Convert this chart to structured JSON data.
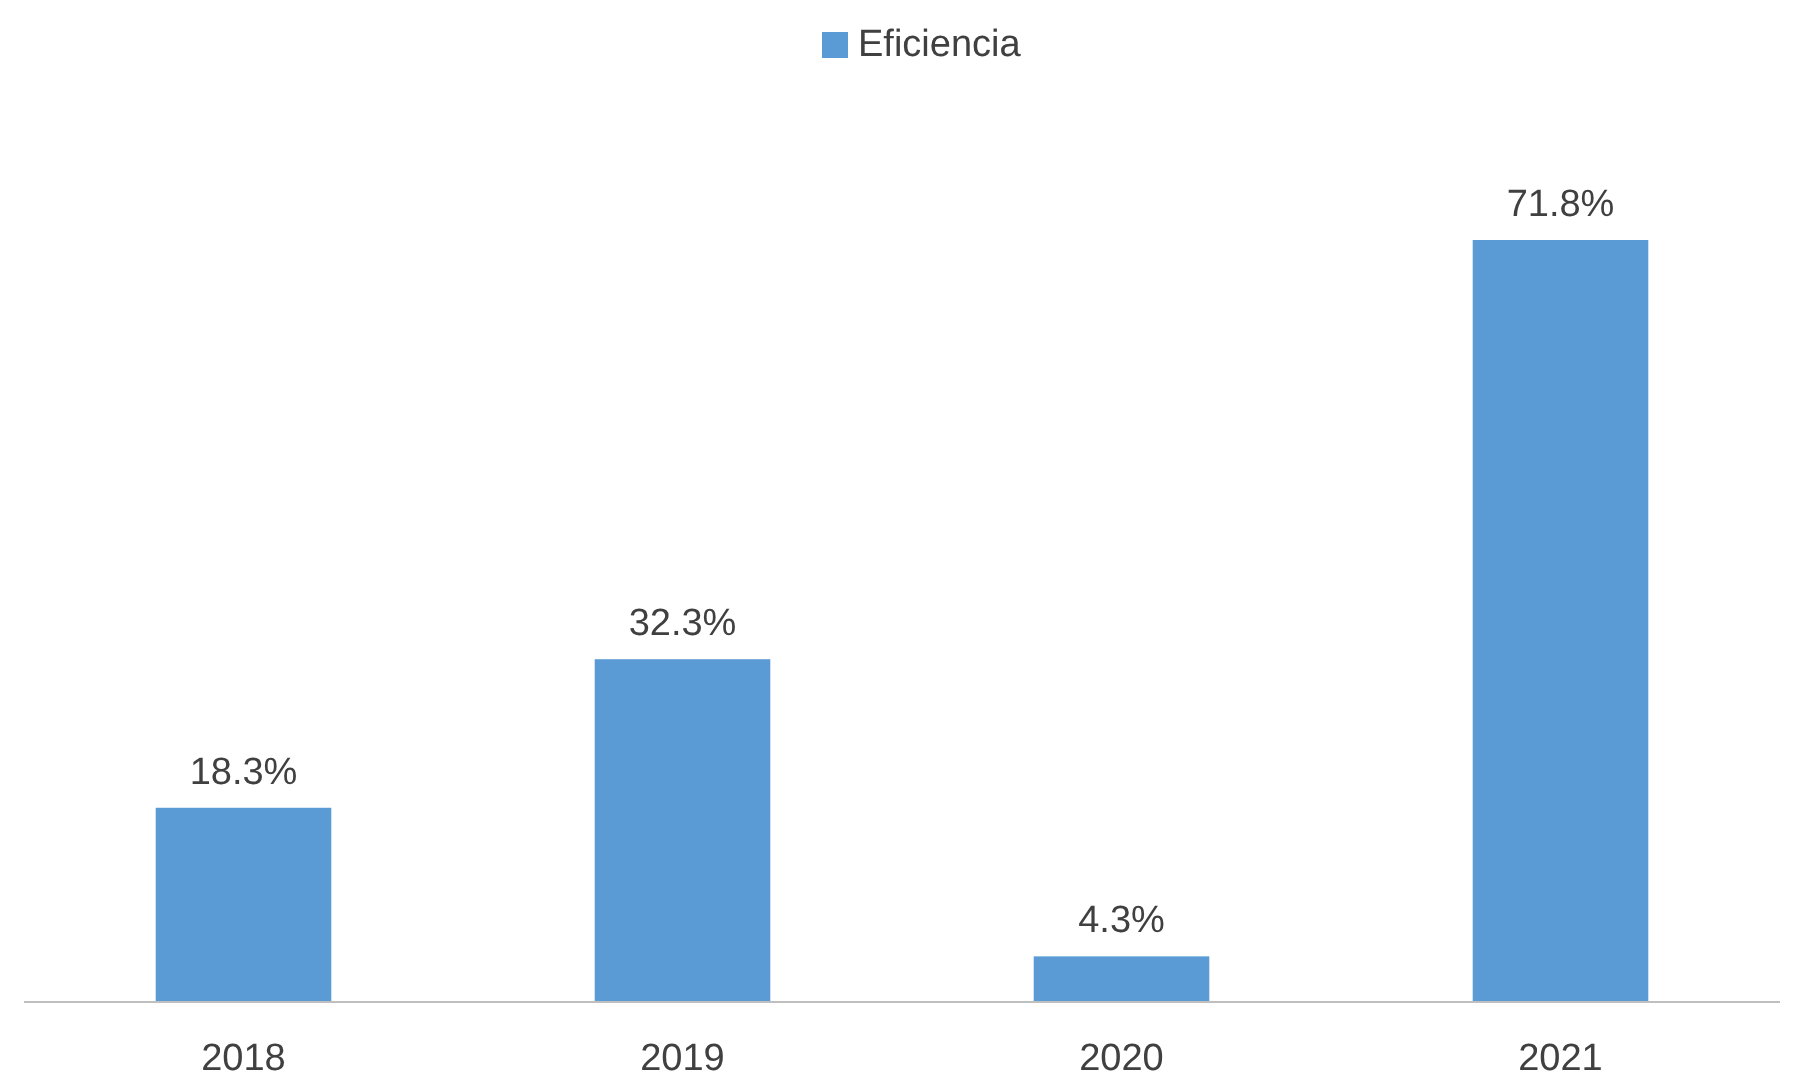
{
  "chart_data": {
    "type": "bar",
    "categories": [
      "2018",
      "2019",
      "2020",
      "2021"
    ],
    "series": [
      {
        "name": "Eficiencia",
        "color": "#5b9bd5",
        "values": [
          18.3,
          32.3,
          4.3,
          71.8
        ],
        "value_labels": [
          "18.3%",
          "32.3%",
          "4.3%",
          "71.8%"
        ]
      }
    ],
    "tick_labels": "x",
    "legend": "top"
  }
}
